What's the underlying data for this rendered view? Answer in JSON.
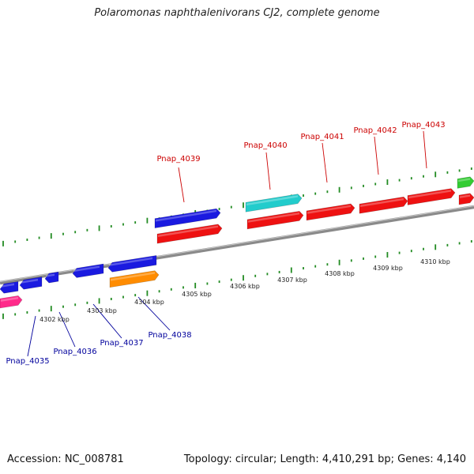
{
  "title": "Polaromonas naphthalenivorans CJ2, complete genome",
  "footer": {
    "accession": "Accession: NC_008781",
    "topology": "Topology: circular; Length: 4,410,291 bp; Genes: 4,140"
  },
  "colors": {
    "backbone": "#8a8a8a",
    "tick": "#228b22",
    "label_top": "#cc0000",
    "label_bottom": "#00009c",
    "blue": "#1a1ae0",
    "red": "#ee1111",
    "cyan": "#22cccc",
    "orange": "#ff8c00",
    "green": "#33cc33",
    "pink": "#ff2a8a"
  },
  "scale": {
    "kbp_labels": [
      "4302 kbp",
      "4303 kbp",
      "4304 kbp",
      "4305 kbp",
      "4306 kbp",
      "4307 kbp",
      "4308 kbp",
      "4309 kbp",
      "4310 kbp"
    ]
  },
  "genes_top": [
    {
      "label": "Pnap_4039"
    },
    {
      "label": "Pnap_4040"
    },
    {
      "label": "Pnap_4041"
    },
    {
      "label": "Pnap_4042"
    },
    {
      "label": "Pnap_4043"
    }
  ],
  "genes_bottom": [
    {
      "label": "Pnap_4035"
    },
    {
      "label": "Pnap_4036"
    },
    {
      "label": "Pnap_4037"
    },
    {
      "label": "Pnap_4038"
    }
  ]
}
